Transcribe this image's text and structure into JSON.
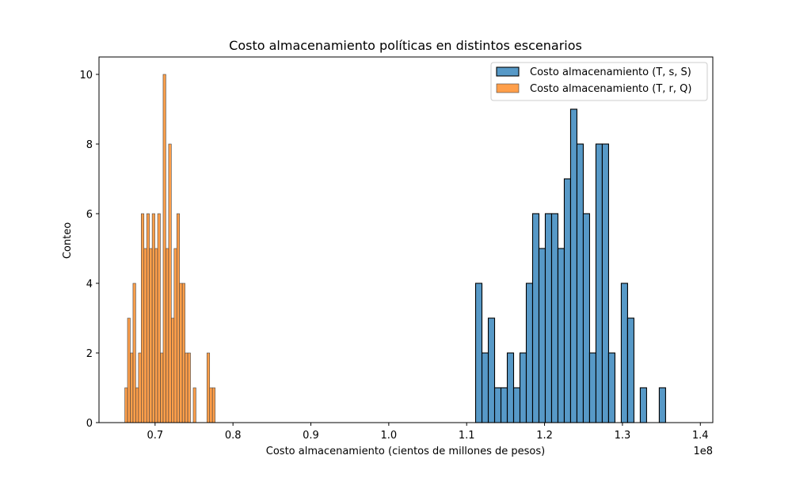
{
  "chart_data": {
    "type": "bar",
    "title": "Costo almacenamiento políticas en distintos escenarios",
    "xlabel": "Costo almacenamiento (cientos de millones de pesos)",
    "ylabel": "Conteo",
    "x_offset_label": "1e8",
    "xlim": [
      0.628,
      1.416
    ],
    "ylim": [
      0,
      10.5
    ],
    "xticks": [
      0.7,
      0.8,
      0.9,
      1.0,
      1.1,
      1.2,
      1.3,
      1.4
    ],
    "xtick_labels": [
      "0.7",
      "0.8",
      "0.9",
      "1.0",
      "1.1",
      "1.2",
      "1.3",
      "1.4"
    ],
    "yticks": [
      0,
      2,
      4,
      6,
      8,
      10
    ],
    "ytick_labels": [
      "0",
      "2",
      "4",
      "6",
      "8",
      "10"
    ],
    "grid": false,
    "legend_position": "top-right",
    "series": [
      {
        "name": "Costo almacenamiento (T, s, S)",
        "color": "#1f77b4",
        "bin_start": 1.1115,
        "bin_width": 0.00813,
        "counts": [
          4,
          2,
          3,
          1,
          1,
          2,
          1,
          2,
          4,
          6,
          5,
          6,
          6,
          5,
          7,
          9,
          8,
          6,
          2,
          8,
          8,
          2,
          0,
          4,
          3,
          0,
          1,
          0,
          0,
          1
        ]
      },
      {
        "name": "Costo almacenamiento (T, r, Q)",
        "color": "#ff7f0e",
        "bin_start": 0.6611,
        "bin_width": 0.003515,
        "counts": [
          1,
          3,
          2,
          4,
          1,
          2,
          6,
          5,
          6,
          5,
          6,
          5,
          6,
          2,
          10,
          5,
          8,
          3,
          5,
          6,
          4,
          4,
          2,
          2,
          0,
          1,
          0,
          0,
          0,
          0,
          2,
          1,
          1
        ]
      }
    ]
  }
}
